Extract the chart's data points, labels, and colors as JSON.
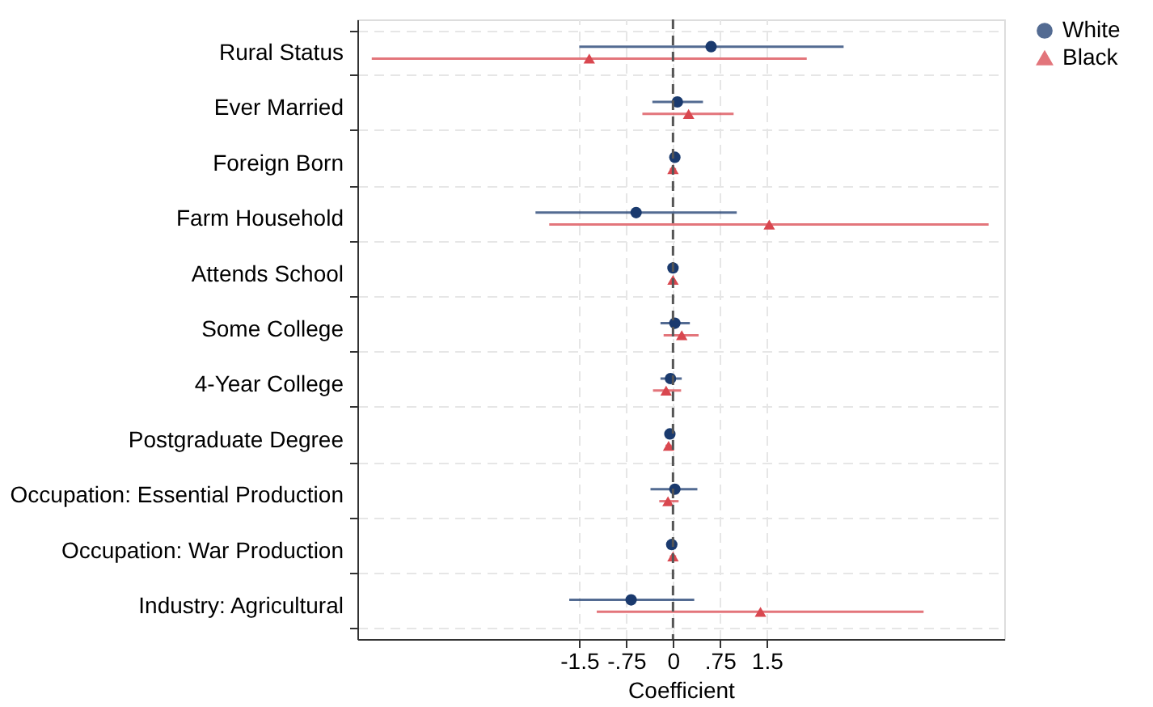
{
  "chart_data": {
    "type": "scatter",
    "orientation": "horizontal",
    "xlabel": "Coefficient",
    "categories": [
      "Rural Status",
      "Ever Married",
      "Foreign Born",
      "Farm Household",
      "Attends School",
      "Some College",
      "4-Year College",
      "Postgraduate Degree",
      "Occupation: Essential Production",
      "Occupation: War Production",
      "Industry: Agricultural"
    ],
    "series": [
      {
        "name": "White",
        "color": "#1a3a6e",
        "marker": "circle",
        "values": [
          0.61,
          0.07,
          0.03,
          -0.59,
          0,
          0.03,
          -0.04,
          -0.05,
          0.03,
          -0.02,
          -0.67
        ],
        "errors": [
          [
            -1.5,
            2.73
          ],
          [
            -0.33,
            0.48
          ],
          [
            -0.02,
            0.08
          ],
          [
            -2.2,
            1.02
          ],
          [
            -0.03,
            0.03
          ],
          [
            -0.2,
            0.27
          ],
          [
            -0.2,
            0.14
          ],
          [
            -0.1,
            0.0
          ],
          [
            -0.36,
            0.39
          ],
          [
            -0.06,
            0.02
          ],
          [
            -1.66,
            0.34
          ]
        ]
      },
      {
        "name": "Black",
        "color": "#d9474f",
        "marker": "triangle",
        "values": [
          -1.34,
          0.25,
          0,
          1.54,
          0,
          0.14,
          -0.11,
          -0.07,
          -0.08,
          0,
          1.4
        ],
        "errors": [
          [
            -4.82,
            2.14
          ],
          [
            -0.49,
            0.97
          ],
          [
            -0.05,
            0.05
          ],
          [
            -1.98,
            5.05
          ],
          [
            -0.03,
            0.03
          ],
          [
            -0.15,
            0.41
          ],
          [
            -0.32,
            0.13
          ],
          [
            -0.12,
            -0.02
          ],
          [
            -0.22,
            0.09
          ],
          [
            -0.05,
            0.05
          ],
          [
            -1.22,
            4.01
          ]
        ]
      }
    ],
    "xlim": [
      -5.05,
      5.3
    ],
    "xticks": [
      -1.5,
      {
        "value": -0.75,
        "label": "-.75"
      },
      0,
      {
        "value": 0.75,
        "label": ".75"
      },
      1.5
    ],
    "ref_lines": [
      {
        "axis": "x",
        "value": 0,
        "color": "#555555",
        "line_style": "dashed"
      }
    ],
    "grid": true,
    "legend": "right"
  }
}
